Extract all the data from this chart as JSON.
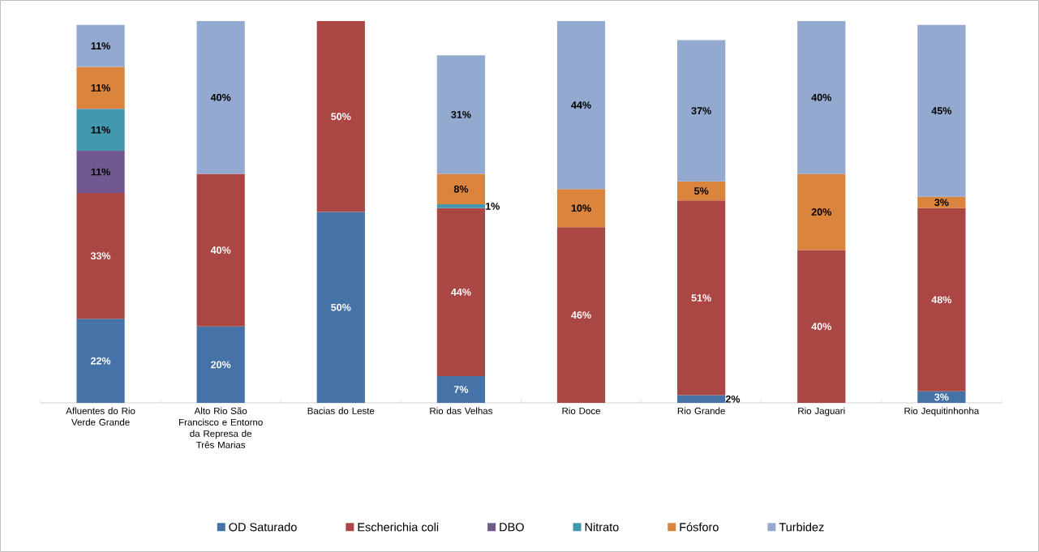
{
  "chart_data": {
    "type": "bar",
    "stacked": true,
    "legend": "bottom",
    "categories": [
      "Afluentes do Rio Verde Grande",
      "Alto Rio São Francisco e Entorno da Represa de Três Marias",
      "Bacias do Leste",
      "Rio das Velhas",
      "Rio Doce",
      "Rio Grande",
      "Rio Jaguari",
      "Rio Jequitinhonha"
    ],
    "series": [
      {
        "name": "OD Saturado",
        "color": "#4572a7",
        "values": [
          22,
          20,
          50,
          7,
          null,
          2,
          null,
          3
        ],
        "value_labels": [
          "22%",
          "20%",
          "50%",
          "7%",
          null,
          "2%",
          null,
          "3%"
        ]
      },
      {
        "name": "Escherichia coli",
        "color": "#aa4643",
        "values": [
          33,
          40,
          50,
          44,
          46,
          51,
          40,
          48
        ],
        "value_labels": [
          "33%",
          "40%",
          "50%",
          "44%",
          "46%",
          "51%",
          "40%",
          "48%"
        ]
      },
      {
        "name": "DBO",
        "color": "#71588f",
        "values": [
          11,
          null,
          null,
          null,
          null,
          null,
          null,
          null
        ],
        "value_labels": [
          "11%",
          null,
          null,
          null,
          null,
          null,
          null,
          null
        ]
      },
      {
        "name": "Nitrato",
        "color": "#4198af",
        "values": [
          11,
          null,
          null,
          1,
          null,
          null,
          null,
          null
        ],
        "value_labels": [
          "11%",
          null,
          null,
          "1%",
          null,
          null,
          null,
          null
        ]
      },
      {
        "name": "Fósforo",
        "color": "#db843d",
        "values": [
          11,
          null,
          null,
          8,
          10,
          5,
          20,
          3
        ],
        "value_labels": [
          "11%",
          null,
          null,
          "8%",
          "10%",
          "5%",
          "20%",
          "3%"
        ]
      },
      {
        "name": "Turbidez",
        "color": "#93a9cf",
        "values": [
          11,
          40,
          null,
          31,
          44,
          37,
          40,
          45
        ],
        "value_labels": [
          "11%",
          "40%",
          null,
          "31%",
          "44%",
          "37%",
          "40%",
          "45%"
        ]
      }
    ]
  }
}
